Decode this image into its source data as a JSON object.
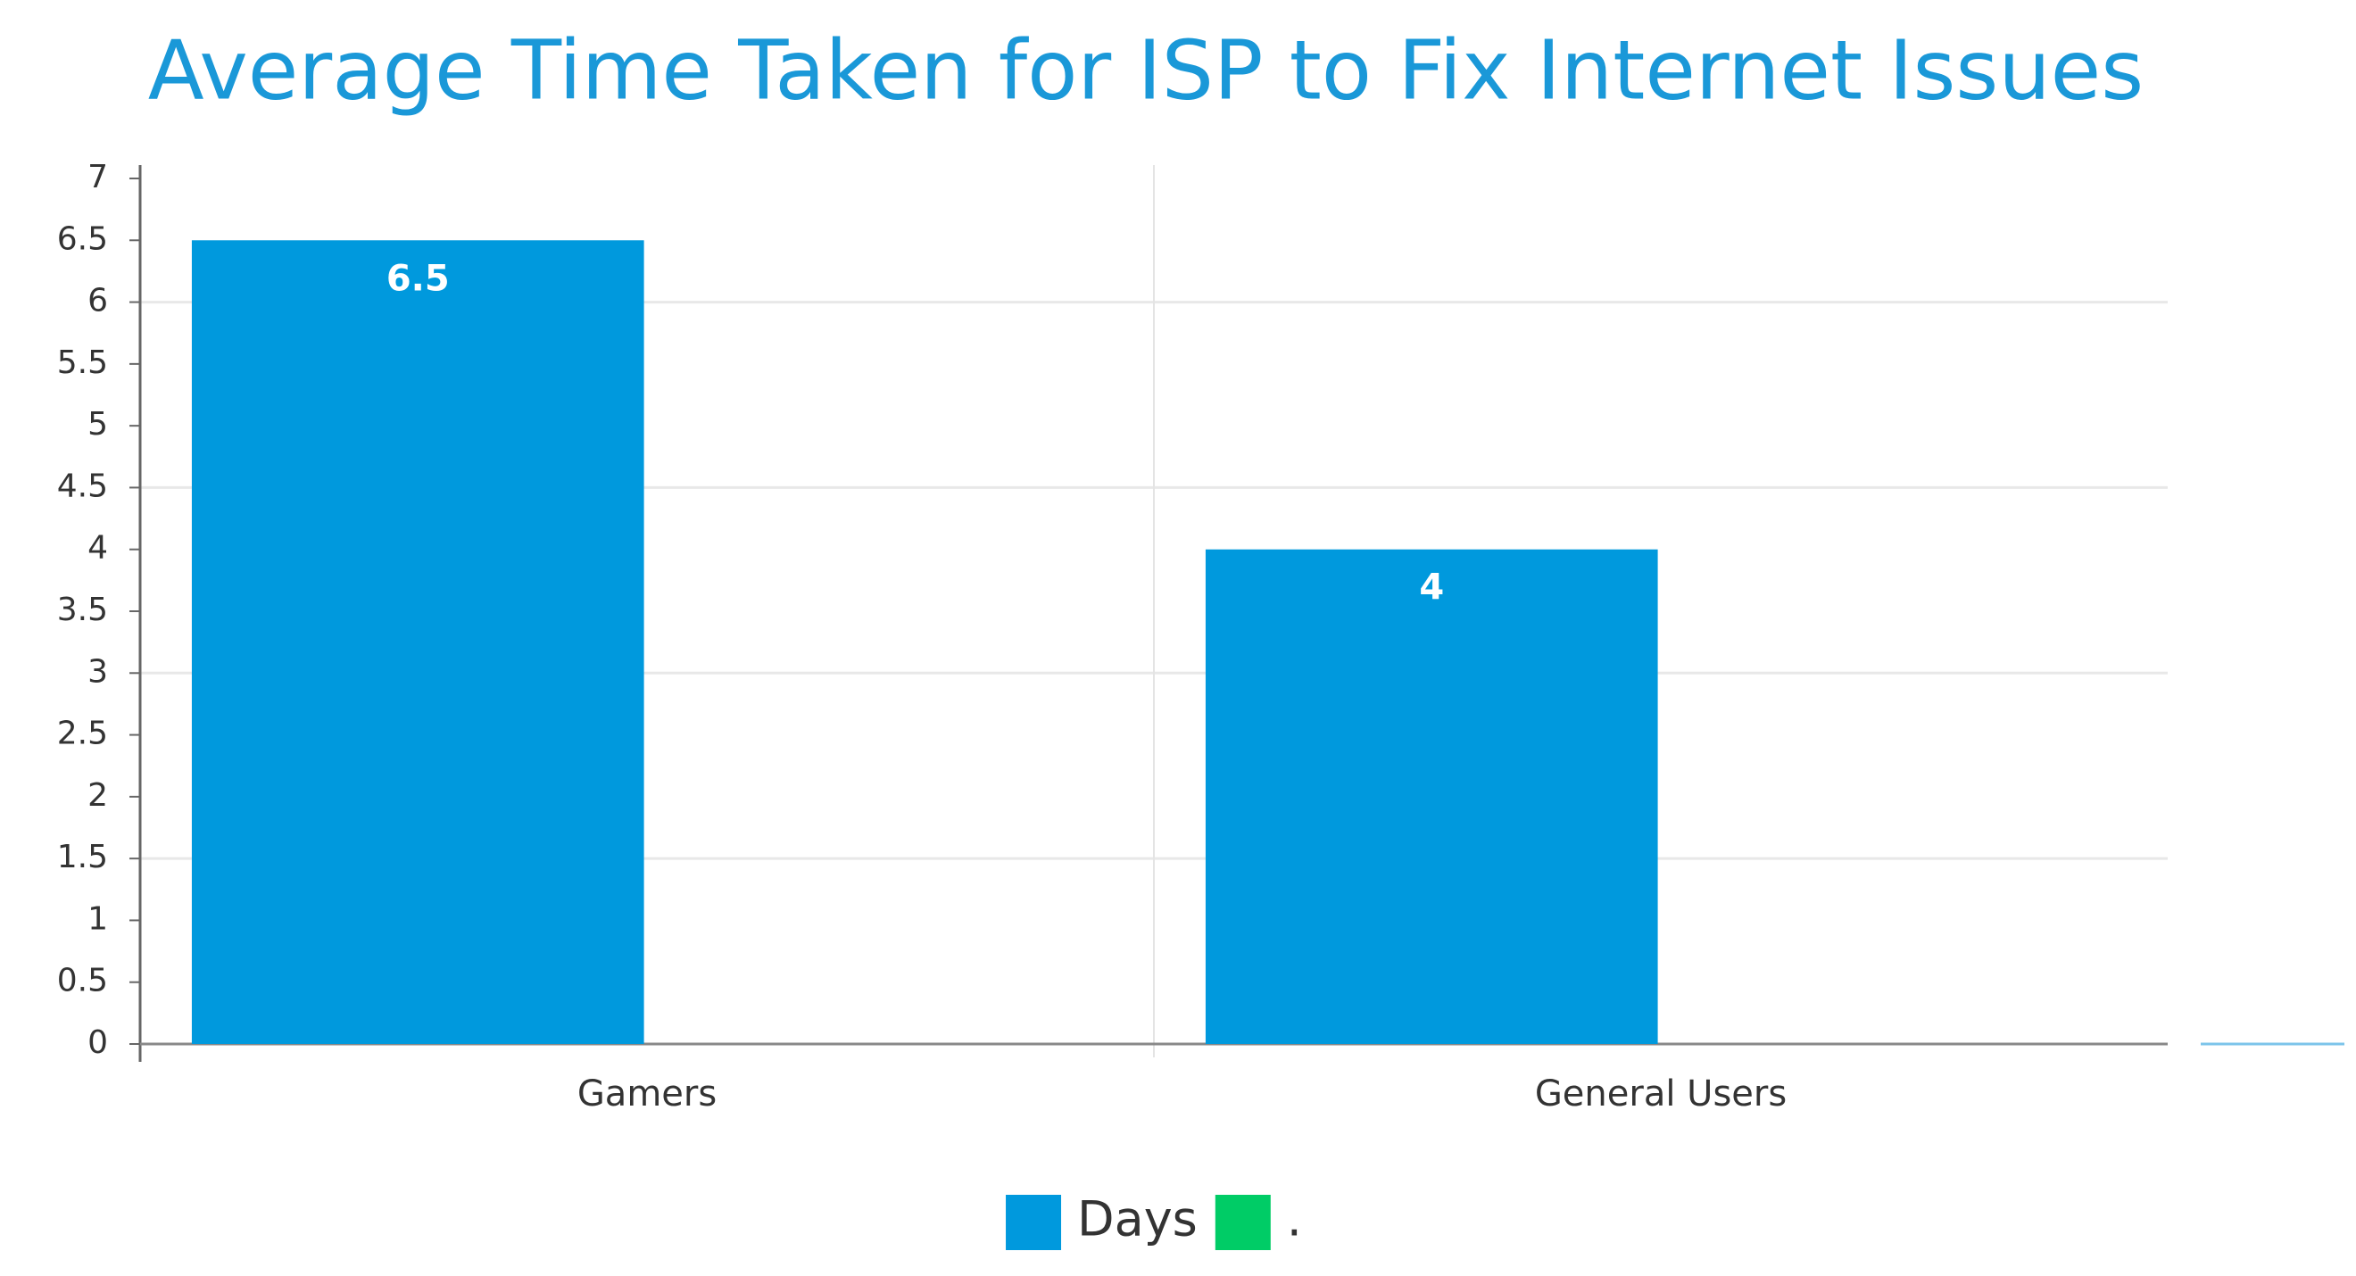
{
  "chart_data": {
    "type": "bar",
    "title": "Average Time Taken for ISP to Fix Internet Issues",
    "categories": [
      "Gamers",
      "General Users"
    ],
    "series": [
      {
        "name": "Days",
        "color": "#0099dd",
        "values": [
          6.5,
          4
        ]
      },
      {
        "name": ".",
        "color": "#00cc66",
        "values": [
          null,
          null
        ]
      }
    ],
    "ylim": [
      0,
      7
    ],
    "yticks": [
      0,
      0.5,
      1,
      1.5,
      2,
      2.5,
      3,
      3.5,
      4,
      4.5,
      5,
      5.5,
      6,
      6.5,
      7
    ],
    "grid": true,
    "legend": "bottom"
  }
}
